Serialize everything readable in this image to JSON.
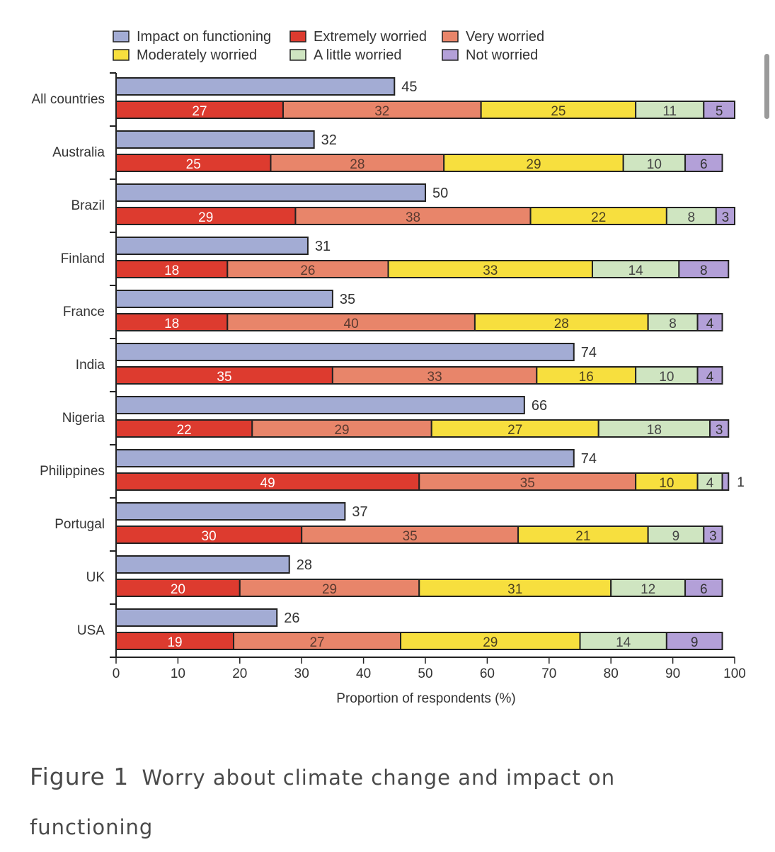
{
  "chart_data": {
    "type": "bar",
    "orientation": "horizontal",
    "xlabel": "Proportion of respondents (%)",
    "xlim": [
      0,
      100
    ],
    "xticks": [
      0,
      10,
      20,
      30,
      40,
      50,
      60,
      70,
      80,
      90,
      100
    ],
    "legend_position": "top",
    "categories": [
      "All countries",
      "Australia",
      "Brazil",
      "Finland",
      "France",
      "India",
      "Nigeria",
      "Philippines",
      "Portugal",
      "UK",
      "USA"
    ],
    "impact": {
      "name": "Impact on functioning",
      "color": "#a3acd4",
      "values": [
        45,
        32,
        50,
        31,
        35,
        74,
        66,
        74,
        37,
        28,
        26
      ]
    },
    "series": [
      {
        "name": "Extremely worried",
        "color": "#dd3b2f",
        "label_color": "#ffffff",
        "values": [
          27,
          25,
          29,
          18,
          18,
          35,
          22,
          49,
          30,
          20,
          19
        ]
      },
      {
        "name": "Very worried",
        "color": "#e8856a",
        "label_color": "#5a3a30",
        "values": [
          32,
          28,
          38,
          26,
          40,
          33,
          29,
          35,
          35,
          29,
          27
        ]
      },
      {
        "name": "Moderately worried",
        "color": "#f7df3e",
        "label_color": "#4a4020",
        "values": [
          25,
          29,
          22,
          33,
          28,
          16,
          27,
          10,
          21,
          31,
          29
        ]
      },
      {
        "name": "A little worried",
        "color": "#cfe5c1",
        "label_color": "#444444",
        "values": [
          11,
          10,
          8,
          14,
          8,
          10,
          18,
          4,
          9,
          12,
          14
        ]
      },
      {
        "name": "Not worried",
        "color": "#b3a0d8",
        "label_color": "#333333",
        "values": [
          5,
          6,
          3,
          8,
          4,
          4,
          3,
          1,
          3,
          6,
          9
        ]
      }
    ]
  },
  "caption": {
    "figure": "Figure 1",
    "text": "Worry about climate change and impact on functioning"
  }
}
